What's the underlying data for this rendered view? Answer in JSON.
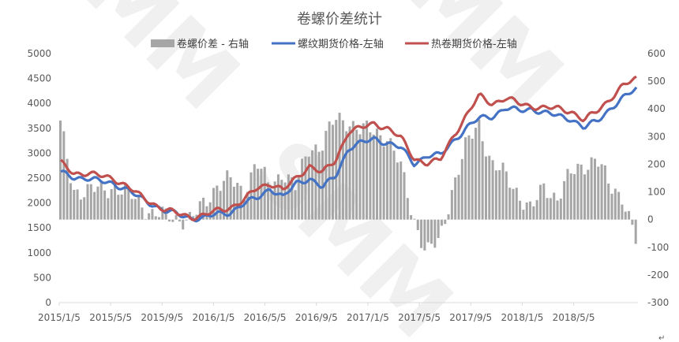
{
  "chart_data": {
    "type": "line",
    "title": "卷螺价差统计",
    "watermark": "SMM",
    "x_labels": [
      "2015/1/5",
      "2015/5/5",
      "2015/9/5",
      "2016/1/5",
      "2016/5/5",
      "2016/9/5",
      "2017/1/5",
      "2017/5/5",
      "2017/9/5",
      "2018/1/5",
      "2018/5/5"
    ],
    "y_left": {
      "ticks": [
        "5000",
        "4500",
        "4000",
        "3500",
        "3000",
        "2500",
        "2000",
        "1500",
        "1000",
        "500",
        "0"
      ],
      "range": [
        0,
        5000
      ]
    },
    "y_right": {
      "ticks": [
        "600",
        "500",
        "400",
        "300",
        "200",
        "100",
        "0",
        "-100",
        "-200",
        "-300"
      ],
      "range": [
        -300,
        600
      ]
    },
    "legend_position": "top",
    "grid": false,
    "series": [
      {
        "name": "卷螺价差 - 右轴",
        "type": "bar",
        "axis": "right",
        "color": "#a6a6a6",
        "months": [
          "2015-01",
          "2015-02",
          "2015-03",
          "2015-04",
          "2015-05",
          "2015-06",
          "2015-07",
          "2015-08",
          "2015-09",
          "2015-10",
          "2015-11",
          "2015-12",
          "2016-01",
          "2016-02",
          "2016-03",
          "2016-04",
          "2016-05",
          "2016-06",
          "2016-07",
          "2016-08",
          "2016-09",
          "2016-10",
          "2016-11",
          "2016-12",
          "2017-01",
          "2017-02",
          "2017-03",
          "2017-04",
          "2017-05",
          "2017-06",
          "2017-07",
          "2017-08",
          "2017-09",
          "2017-10",
          "2017-11",
          "2017-12",
          "2018-01",
          "2018-02",
          "2018-03",
          "2018-04",
          "2018-05",
          "2018-06",
          "2018-07",
          "2018-08",
          "2018-09"
        ],
        "values": [
          340,
          110,
          100,
          110,
          120,
          95,
          70,
          20,
          10,
          8,
          -5,
          60,
          130,
          140,
          100,
          210,
          110,
          180,
          110,
          260,
          270,
          360,
          360,
          320,
          320,
          300,
          190,
          10,
          -120,
          -80,
          120,
          260,
          350,
          200,
          160,
          100,
          30,
          120,
          80,
          160,
          200,
          220,
          120,
          90,
          -80
        ]
      },
      {
        "name": "螺纹期货价格-左轴",
        "type": "line",
        "axis": "left",
        "color": "#4472c4",
        "months": [
          "2015-01",
          "2015-02",
          "2015-03",
          "2015-04",
          "2015-05",
          "2015-06",
          "2015-07",
          "2015-08",
          "2015-09",
          "2015-10",
          "2015-11",
          "2015-12",
          "2016-01",
          "2016-02",
          "2016-03",
          "2016-04",
          "2016-05",
          "2016-06",
          "2016-07",
          "2016-08",
          "2016-09",
          "2016-10",
          "2016-11",
          "2016-12",
          "2017-01",
          "2017-02",
          "2017-03",
          "2017-04",
          "2017-05",
          "2017-06",
          "2017-07",
          "2017-08",
          "2017-09",
          "2017-10",
          "2017-11",
          "2017-12",
          "2018-01",
          "2018-02",
          "2018-03",
          "2018-04",
          "2018-05",
          "2018-06",
          "2018-07",
          "2018-08",
          "2018-09"
        ],
        "values": [
          2600,
          2520,
          2500,
          2430,
          2400,
          2280,
          2100,
          1980,
          1840,
          1760,
          1700,
          1700,
          1780,
          1820,
          1980,
          2100,
          2300,
          2100,
          2400,
          2500,
          2300,
          2550,
          3100,
          3200,
          3300,
          3200,
          3100,
          2800,
          2950,
          2950,
          3250,
          3500,
          3700,
          3750,
          3900,
          3850,
          3900,
          3800,
          3750,
          3700,
          3500,
          3650,
          3900,
          4100,
          4300
        ]
      },
      {
        "name": "热卷期货价格-左轴",
        "type": "line",
        "axis": "left",
        "color": "#c0504d",
        "months": [
          "2015-01",
          "2015-02",
          "2015-03",
          "2015-04",
          "2015-05",
          "2015-06",
          "2015-07",
          "2015-08",
          "2015-09",
          "2015-10",
          "2015-11",
          "2015-12",
          "2016-01",
          "2016-02",
          "2016-03",
          "2016-04",
          "2016-05",
          "2016-06",
          "2016-07",
          "2016-08",
          "2016-09",
          "2016-10",
          "2016-11",
          "2016-12",
          "2017-01",
          "2017-02",
          "2017-03",
          "2017-04",
          "2017-05",
          "2017-06",
          "2017-07",
          "2017-08",
          "2017-09",
          "2017-10",
          "2017-11",
          "2017-12",
          "2018-01",
          "2018-02",
          "2018-03",
          "2018-04",
          "2018-05",
          "2018-06",
          "2018-07",
          "2018-08",
          "2018-09"
        ],
        "values": [
          2800,
          2600,
          2600,
          2540,
          2500,
          2350,
          2150,
          2000,
          1860,
          1780,
          1720,
          1750,
          1850,
          1920,
          2050,
          2300,
          2400,
          2250,
          2500,
          2750,
          2600,
          2850,
          3450,
          3500,
          3600,
          3500,
          3300,
          2900,
          2800,
          2850,
          3350,
          3750,
          4150,
          4000,
          4100,
          4000,
          3950,
          3900,
          3900,
          3850,
          3650,
          3850,
          4100,
          4350,
          4500
        ]
      }
    ]
  }
}
